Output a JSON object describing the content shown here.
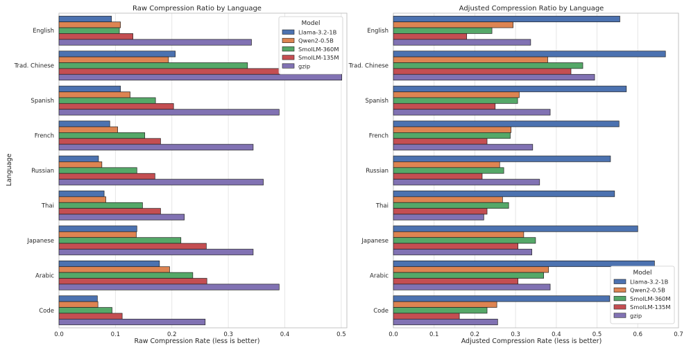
{
  "figure": {
    "ylabel_shared": "Language"
  },
  "chart_data": [
    {
      "type": "bar",
      "orientation": "horizontal",
      "title": "Raw Compression Ratio by Language",
      "xlabel": "Raw Compression Rate (less is better)",
      "ylabel": "Language",
      "categories": [
        "English",
        "Trad. Chinese",
        "Spanish",
        "French",
        "Russian",
        "Thai",
        "Japanese",
        "Arabic",
        "Code"
      ],
      "xlim": [
        0,
        0.51
      ],
      "xticks": [
        "0.0",
        "0.1",
        "0.2",
        "0.3",
        "0.4",
        "0.5"
      ],
      "grid": true,
      "legend": {
        "title": "Model",
        "placement": "top-right"
      },
      "series": [
        {
          "name": "Llama-3.2-1B",
          "color": "#4c72b0",
          "values": [
            0.093,
            0.206,
            0.109,
            0.09,
            0.07,
            0.08,
            0.138,
            0.178,
            0.068
          ]
        },
        {
          "name": "Qwen2-0.5B",
          "color": "#dd8452",
          "values": [
            0.109,
            0.194,
            0.126,
            0.104,
            0.076,
            0.083,
            0.137,
            0.196,
            0.069
          ]
        },
        {
          "name": "SmolLM-360M",
          "color": "#55a868",
          "values": [
            0.107,
            0.334,
            0.171,
            0.152,
            0.138,
            0.148,
            0.216,
            0.237,
            0.094
          ]
        },
        {
          "name": "SmolLM-135M",
          "color": "#c44e52",
          "values": [
            0.131,
            0.392,
            0.203,
            0.18,
            0.17,
            0.18,
            0.261,
            0.262,
            0.112
          ]
        },
        {
          "name": "gzip",
          "color": "#8172b3",
          "values": [
            0.341,
            0.501,
            0.39,
            0.344,
            0.362,
            0.222,
            0.344,
            0.39,
            0.259
          ]
        }
      ]
    },
    {
      "type": "bar",
      "orientation": "horizontal",
      "title": "Adjusted Compression Ratio by Language",
      "xlabel": "Adjusted Compression Rate (less is better)",
      "ylabel": "",
      "categories": [
        "English",
        "Trad. Chinese",
        "Spanish",
        "French",
        "Russian",
        "Thai",
        "Japanese",
        "Arabic",
        "Code"
      ],
      "xlim": [
        0,
        0.7
      ],
      "xticks": [
        "0.0",
        "0.1",
        "0.2",
        "0.3",
        "0.4",
        "0.5",
        "0.6",
        "0.7"
      ],
      "grid": true,
      "legend": {
        "title": "Model",
        "placement": "bottom-right"
      },
      "series": [
        {
          "name": "Llama-3.2-1B",
          "color": "#4c72b0",
          "values": [
            0.556,
            0.668,
            0.572,
            0.554,
            0.533,
            0.543,
            0.6,
            0.641,
            0.531
          ]
        },
        {
          "name": "Qwen2-0.5B",
          "color": "#dd8452",
          "values": [
            0.294,
            0.379,
            0.309,
            0.289,
            0.261,
            0.268,
            0.32,
            0.381,
            0.254
          ]
        },
        {
          "name": "SmolLM-360M",
          "color": "#55a868",
          "values": [
            0.242,
            0.465,
            0.305,
            0.287,
            0.271,
            0.283,
            0.349,
            0.369,
            0.23
          ]
        },
        {
          "name": "SmolLM-135M",
          "color": "#c44e52",
          "values": [
            0.18,
            0.436,
            0.25,
            0.23,
            0.218,
            0.23,
            0.306,
            0.306,
            0.162
          ]
        },
        {
          "name": "gzip",
          "color": "#8172b3",
          "values": [
            0.337,
            0.494,
            0.385,
            0.342,
            0.359,
            0.222,
            0.34,
            0.385,
            0.256
          ]
        }
      ]
    }
  ]
}
